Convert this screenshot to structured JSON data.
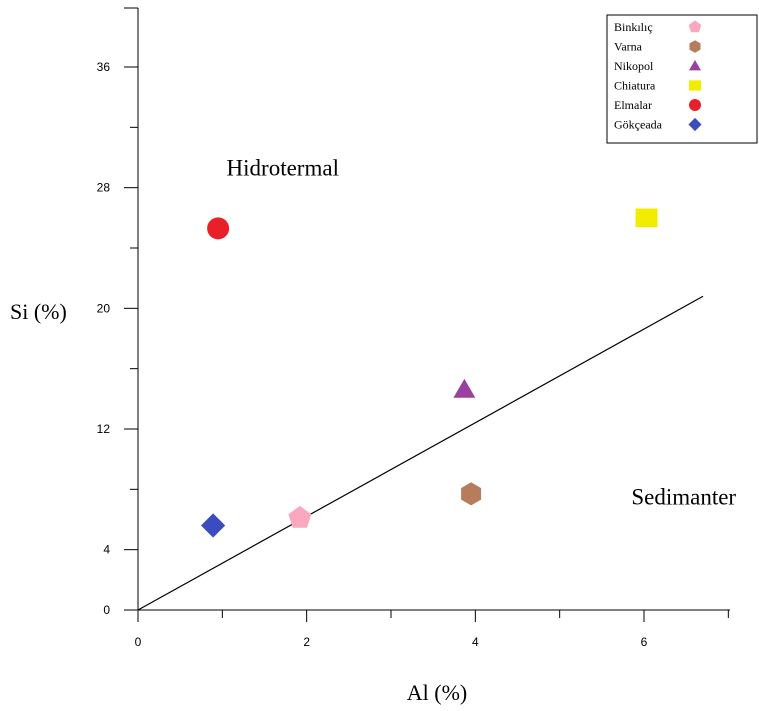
{
  "chart_data": {
    "type": "scatter",
    "xlabel": "Al (%)",
    "ylabel": "Si (%)",
    "xlim": [
      0,
      7
    ],
    "ylim": [
      0,
      40
    ],
    "x_ticks": [
      0,
      2,
      4,
      6
    ],
    "y_ticks": [
      0,
      4,
      12,
      20,
      28,
      36
    ],
    "grid": false,
    "legend_position": "top-right",
    "annotations": [
      {
        "text": "Hidrotermal",
        "x": 1.05,
        "y": 28.8
      },
      {
        "text": "Sedimanter",
        "x": 5.85,
        "y": 7.0
      }
    ],
    "reference_line": {
      "from": [
        0,
        0
      ],
      "to": [
        6.7,
        20.8
      ]
    },
    "series": [
      {
        "name": "Binkılıç",
        "marker": "pentagon",
        "color": "#f9a8c0",
        "x": [
          1.92
        ],
        "y": [
          6.1
        ]
      },
      {
        "name": "Varna",
        "marker": "hexagon",
        "color": "#b77c5c",
        "x": [
          3.95
        ],
        "y": [
          7.7
        ]
      },
      {
        "name": "Nikopol",
        "marker": "triangle",
        "color": "#9b3fa0",
        "x": [
          3.87
        ],
        "y": [
          14.6
        ]
      },
      {
        "name": "Chiatura",
        "marker": "square",
        "color": "#f2ec00",
        "x": [
          6.03
        ],
        "y": [
          26.0
        ]
      },
      {
        "name": "Elmalar",
        "marker": "circle",
        "color": "#e8202a",
        "x": [
          0.95
        ],
        "y": [
          25.3
        ]
      },
      {
        "name": "Gökçeada",
        "marker": "diamond",
        "color": "#3b4cc0",
        "x": [
          0.89
        ],
        "y": [
          5.6
        ]
      }
    ]
  }
}
